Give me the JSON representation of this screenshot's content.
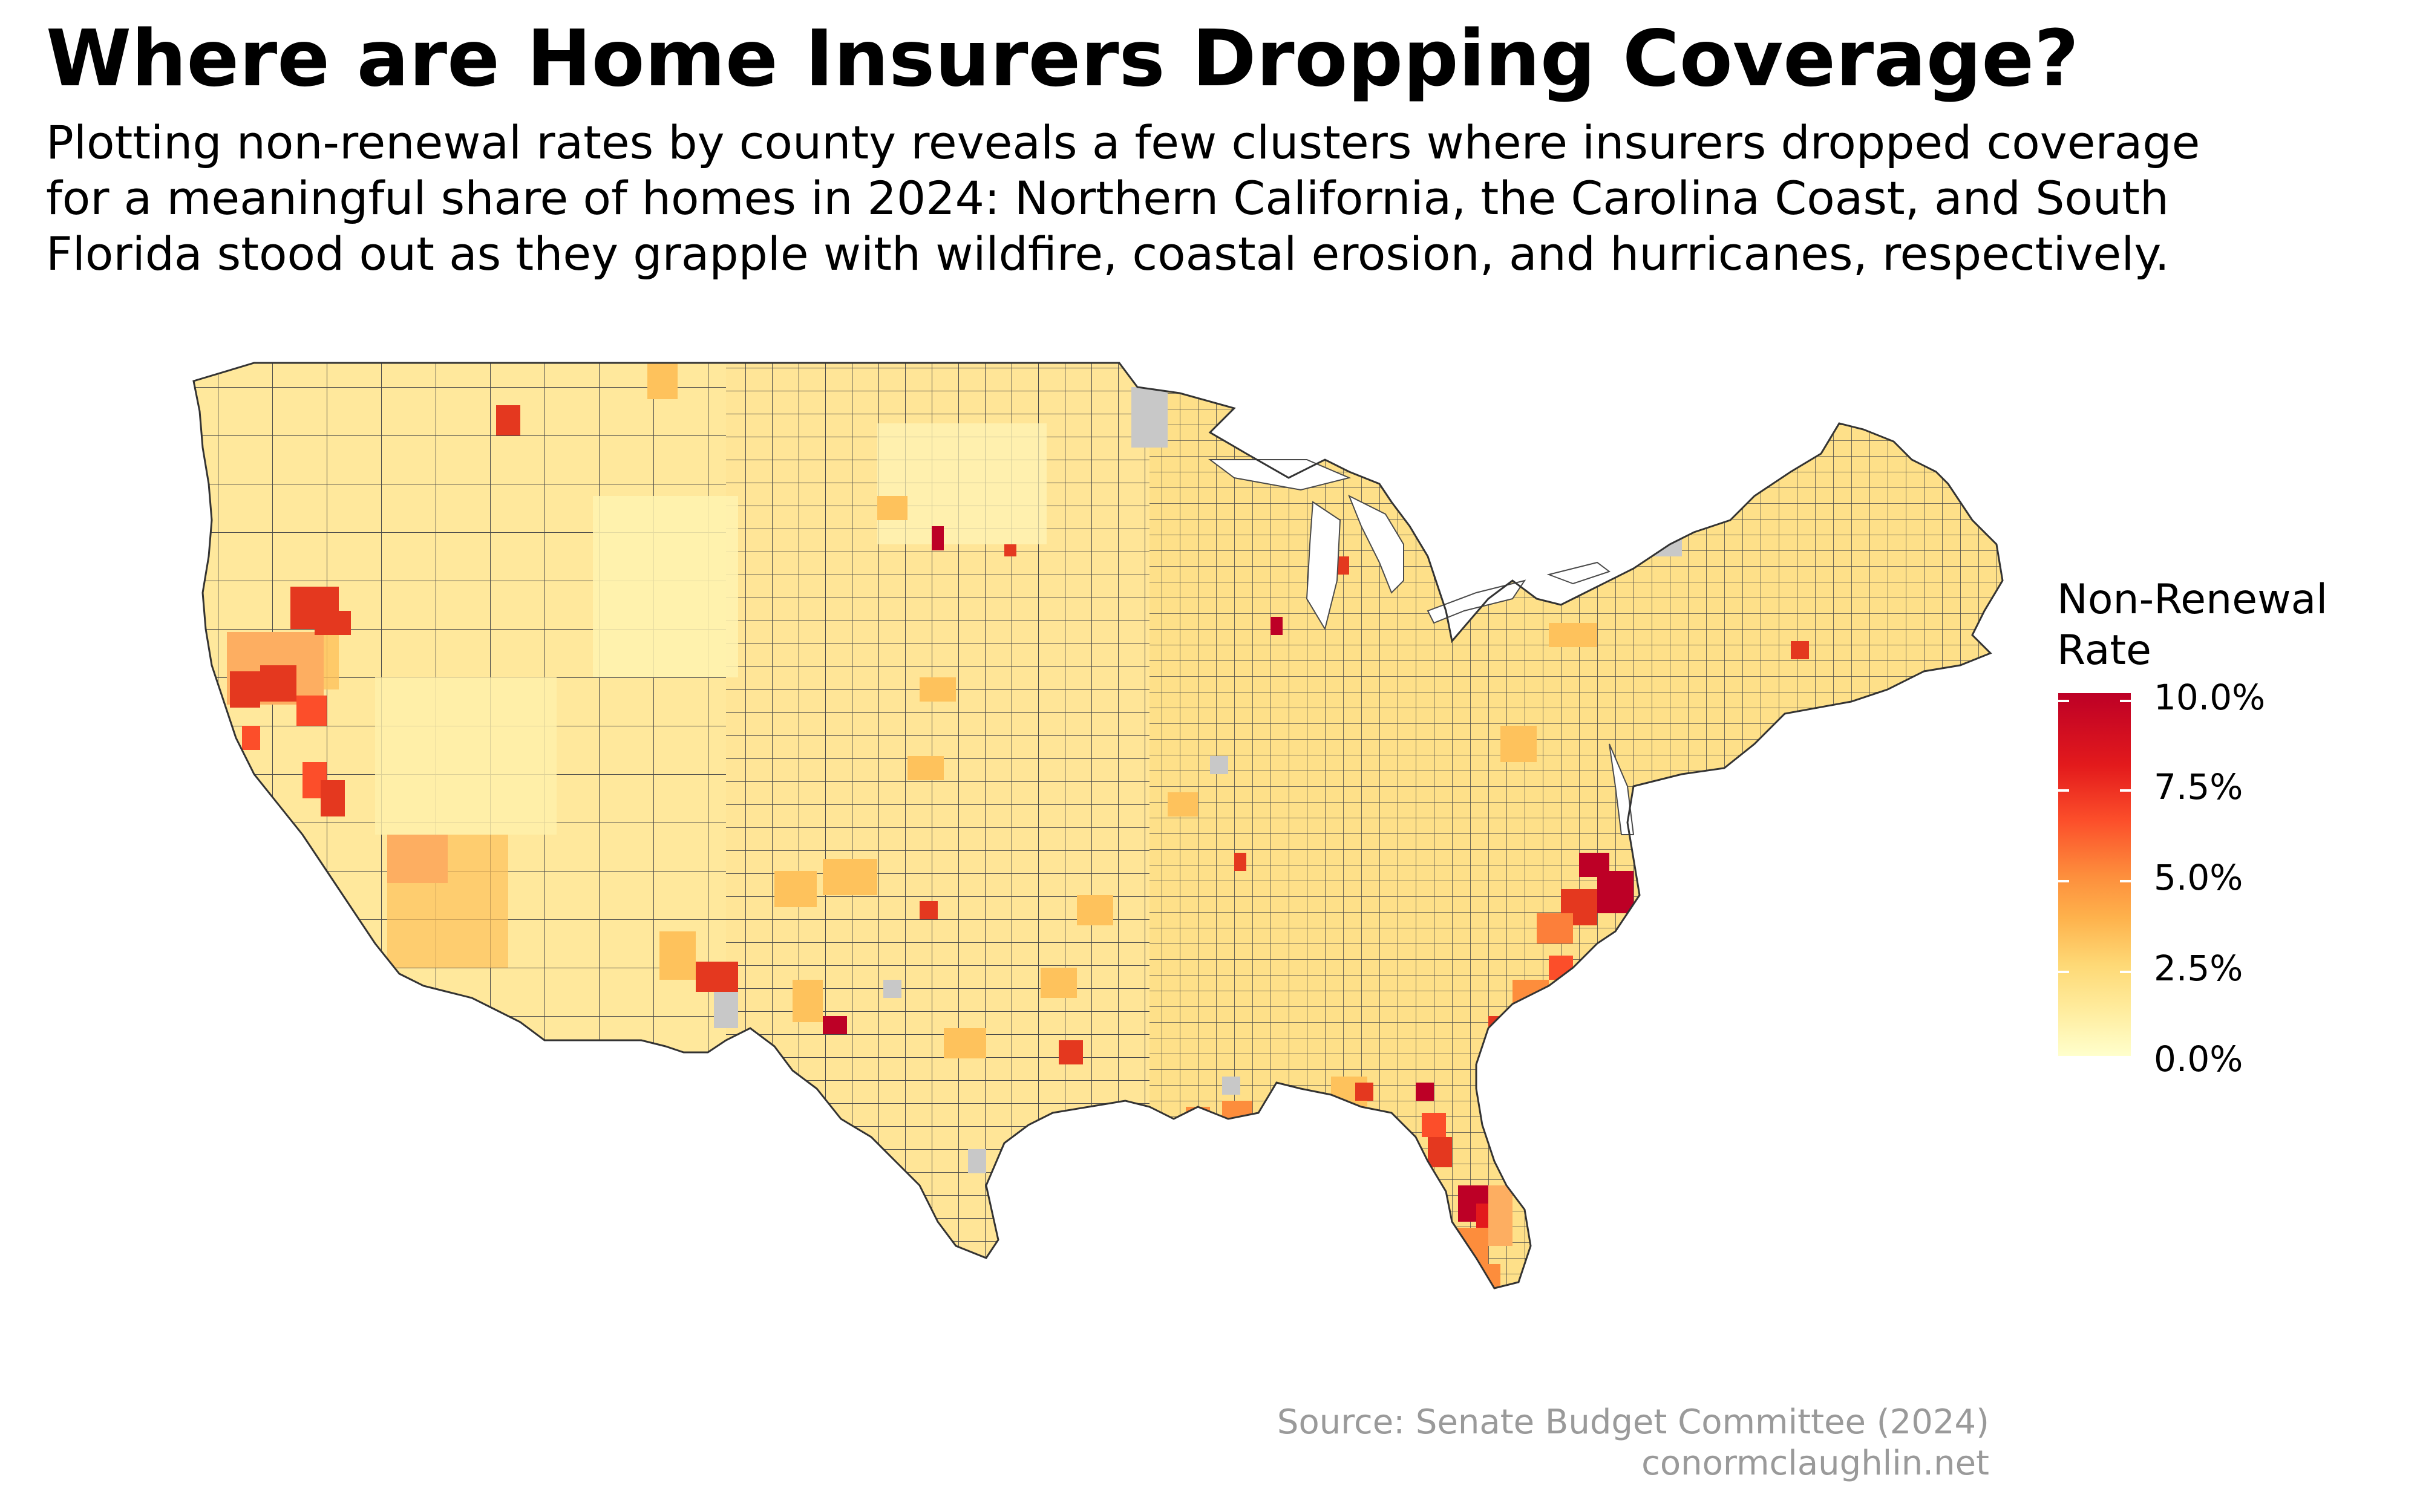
{
  "title": "Where are Home Insurers Dropping Coverage?",
  "subtitle": {
    "line1": "Plotting non-renewal rates by county reveals a few clusters where insurers dropped coverage",
    "line2": "for a meaningful share of homes in 2024: Northern California, the Carolina Coast, and South",
    "line3": "Florida stood out as they grapple with wildfire, coastal erosion, and hurricanes, respectively."
  },
  "legend": {
    "title_line1": "Non-Renewal",
    "title_line2": "Rate",
    "labels": [
      "10.0%",
      "7.5%",
      "5.0%",
      "2.5%",
      "0.0%"
    ],
    "range": [
      0,
      10
    ],
    "colors": {
      "low": "#ffffcc",
      "mid": "#fd8d3c",
      "high": "#bd0026",
      "no_data": "#c8c8c8",
      "border": "#333333"
    }
  },
  "caption": {
    "source": "Source: Senate Budget Committee (2024)",
    "site": "conormclaughlin.net"
  },
  "map": {
    "type": "choropleth",
    "geography": "US counties (contiguous states)",
    "hotspots": [
      "Northern California",
      "Carolina Coast",
      "South Florida"
    ]
  }
}
